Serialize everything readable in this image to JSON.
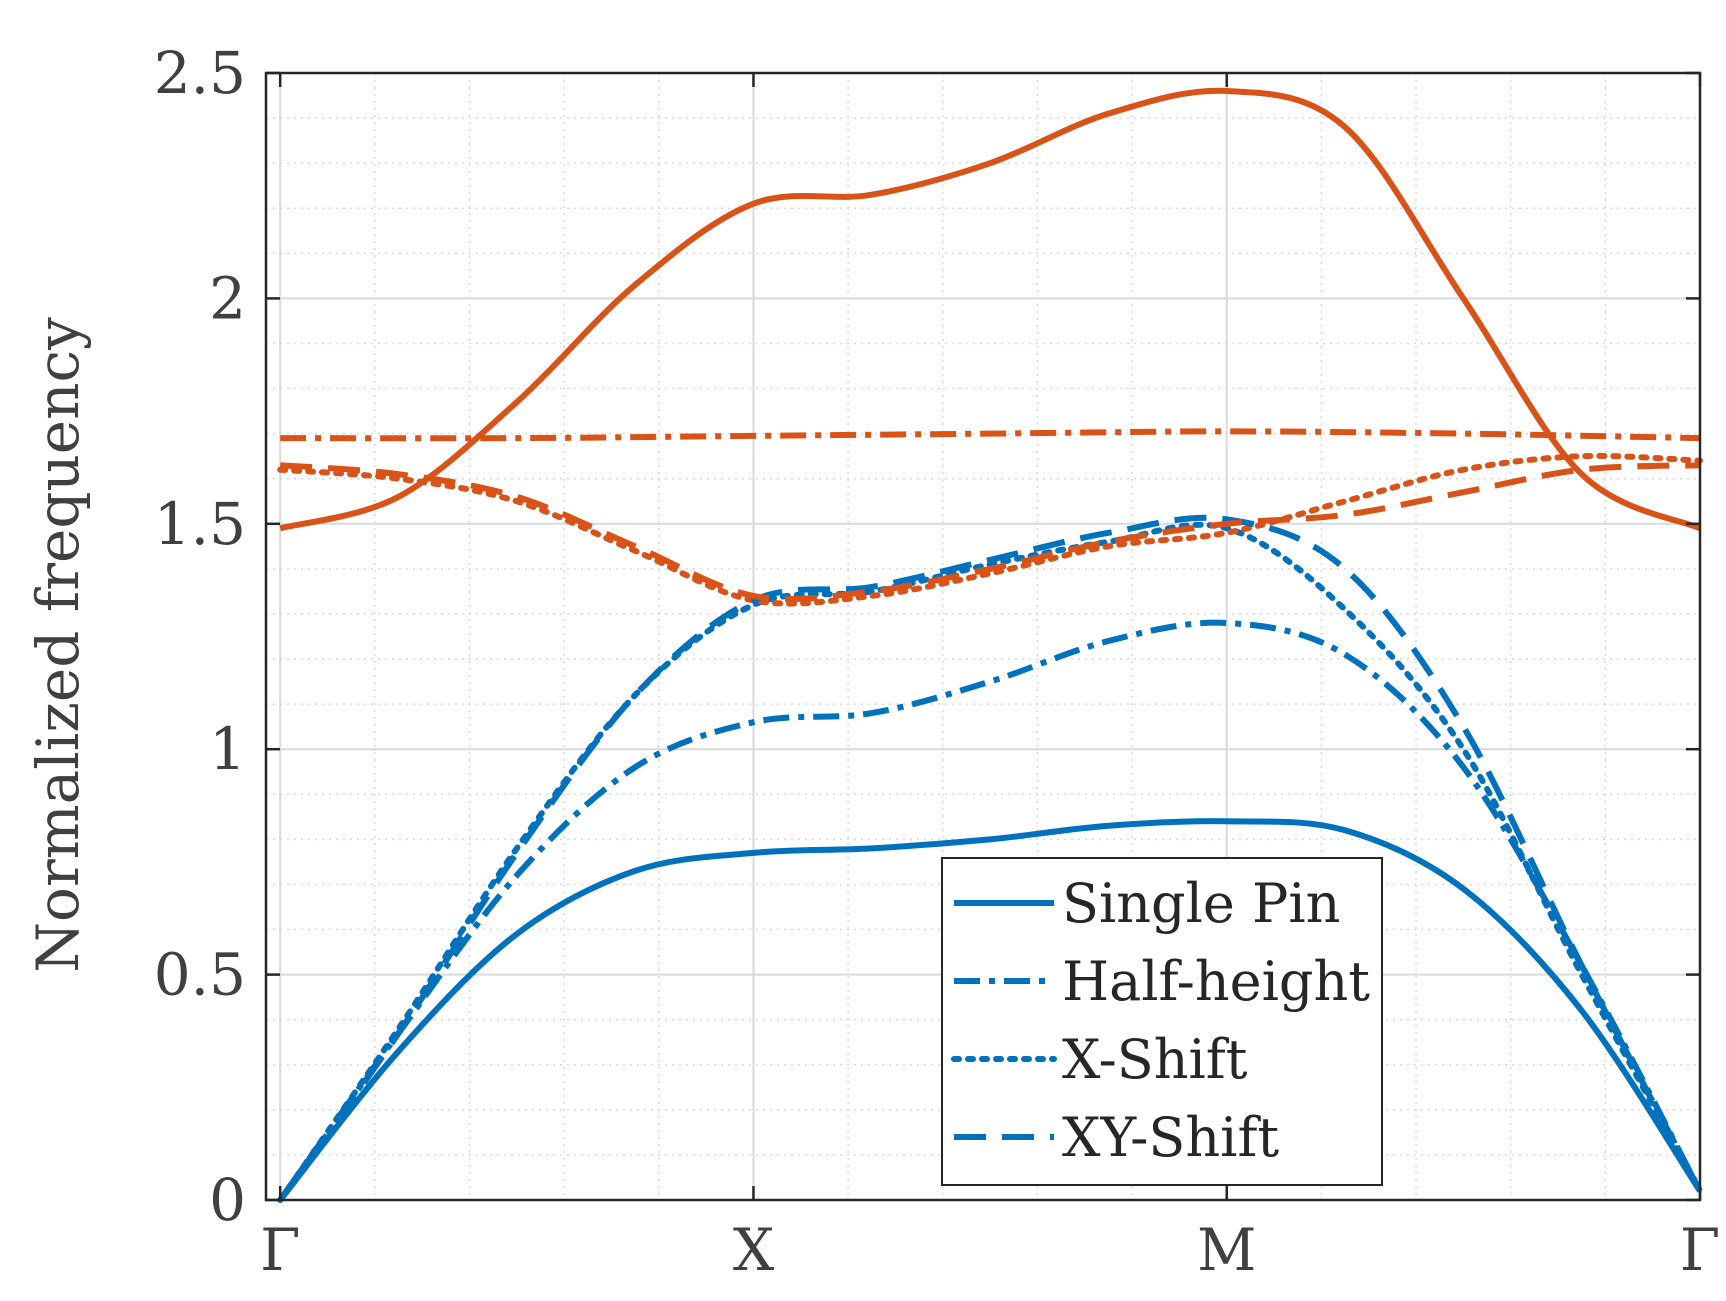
{
  "chart_data": {
    "type": "line",
    "title": "",
    "xlabel": "",
    "ylabel": "Normalized frequency",
    "x_tick_labels": [
      "Γ",
      "X",
      "M",
      "Γ"
    ],
    "x_tick_positions": [
      0,
      1,
      2,
      3
    ],
    "xlim": [
      -0.03,
      3.0
    ],
    "ylim": [
      0,
      2.5
    ],
    "y_tick_labels": [
      "0",
      "0.5",
      "1",
      "1.5",
      "2",
      "2.5"
    ],
    "y_tick_values": [
      0,
      0.5,
      1,
      1.5,
      2,
      2.5
    ],
    "grid": true,
    "minor_grid": true,
    "legend_position": "bottom-right",
    "colors": {
      "blue": "#0072BD",
      "orange": "#D95319",
      "grid": "#d9d9d9",
      "axis": "#262626"
    },
    "legend": [
      {
        "name": "Single Pin",
        "style": "solid"
      },
      {
        "name": "Half-height",
        "style": "dashdot"
      },
      {
        "name": "X-Shift",
        "style": "dotted"
      },
      {
        "name": "XY-Shift",
        "style": "dashed"
      }
    ],
    "series": [
      {
        "name": "Single Pin (band 1)",
        "color": "blue",
        "style": "solid",
        "x": [
          0,
          0.25,
          0.5,
          0.75,
          1.0,
          1.25,
          1.5,
          1.75,
          2.0,
          2.25,
          2.5,
          2.75,
          3.0
        ],
        "y": [
          0,
          0.33,
          0.59,
          0.73,
          0.77,
          0.78,
          0.8,
          0.83,
          0.84,
          0.82,
          0.69,
          0.42,
          0.02
        ]
      },
      {
        "name": "Single Pin (band 2)",
        "color": "orange",
        "style": "solid",
        "x": [
          0,
          0.25,
          0.5,
          0.75,
          1.0,
          1.25,
          1.5,
          1.75,
          2.0,
          2.25,
          2.5,
          2.75,
          3.0
        ],
        "y": [
          1.49,
          1.56,
          1.77,
          2.03,
          2.21,
          2.23,
          2.3,
          2.41,
          2.46,
          2.38,
          2.0,
          1.61,
          1.49
        ]
      },
      {
        "name": "Half-height (band 1)",
        "color": "blue",
        "style": "dashdot",
        "x": [
          0,
          0.25,
          0.5,
          0.75,
          1.0,
          1.25,
          1.5,
          1.75,
          2.0,
          2.25,
          2.5,
          2.75,
          3.0
        ],
        "y": [
          0,
          0.37,
          0.72,
          0.96,
          1.06,
          1.08,
          1.15,
          1.24,
          1.28,
          1.21,
          0.96,
          0.52,
          0.02
        ]
      },
      {
        "name": "Half-height (band 2)",
        "color": "orange",
        "style": "dashdot",
        "x": [
          0,
          0.5,
          1.0,
          1.5,
          2.0,
          2.5,
          3.0
        ],
        "y": [
          1.69,
          1.69,
          1.695,
          1.7,
          1.705,
          1.7,
          1.69
        ]
      },
      {
        "name": "X-Shift (band 1)",
        "color": "blue",
        "style": "dotted",
        "x": [
          0,
          0.25,
          0.5,
          0.75,
          1.0,
          1.25,
          1.5,
          1.75,
          2.0,
          2.25,
          2.5,
          2.75,
          3.0
        ],
        "y": [
          0,
          0.38,
          0.78,
          1.12,
          1.32,
          1.35,
          1.41,
          1.46,
          1.49,
          1.31,
          1.0,
          0.5,
          0.02
        ]
      },
      {
        "name": "X-Shift (band 2)",
        "color": "orange",
        "style": "dotted",
        "x": [
          0,
          0.25,
          0.5,
          0.75,
          1.0,
          1.25,
          1.5,
          1.75,
          2.0,
          2.25,
          2.5,
          2.75,
          3.0
        ],
        "y": [
          1.62,
          1.6,
          1.55,
          1.44,
          1.33,
          1.34,
          1.39,
          1.45,
          1.48,
          1.55,
          1.62,
          1.65,
          1.64
        ]
      },
      {
        "name": "XY-Shift (band 1)",
        "color": "blue",
        "style": "dashed",
        "x": [
          0,
          0.25,
          0.5,
          0.75,
          1.0,
          1.25,
          1.5,
          1.75,
          2.0,
          2.25,
          2.5,
          2.75,
          3.0
        ],
        "y": [
          0,
          0.37,
          0.77,
          1.12,
          1.33,
          1.36,
          1.42,
          1.48,
          1.51,
          1.4,
          1.05,
          0.52,
          0.02
        ]
      },
      {
        "name": "XY-Shift (band 2)",
        "color": "orange",
        "style": "dashed",
        "x": [
          0,
          0.25,
          0.5,
          0.75,
          1.0,
          1.25,
          1.5,
          1.75,
          2.0,
          2.25,
          2.5,
          2.75,
          3.0
        ],
        "y": [
          1.63,
          1.61,
          1.56,
          1.45,
          1.34,
          1.35,
          1.4,
          1.46,
          1.5,
          1.52,
          1.57,
          1.62,
          1.63
        ]
      }
    ]
  }
}
